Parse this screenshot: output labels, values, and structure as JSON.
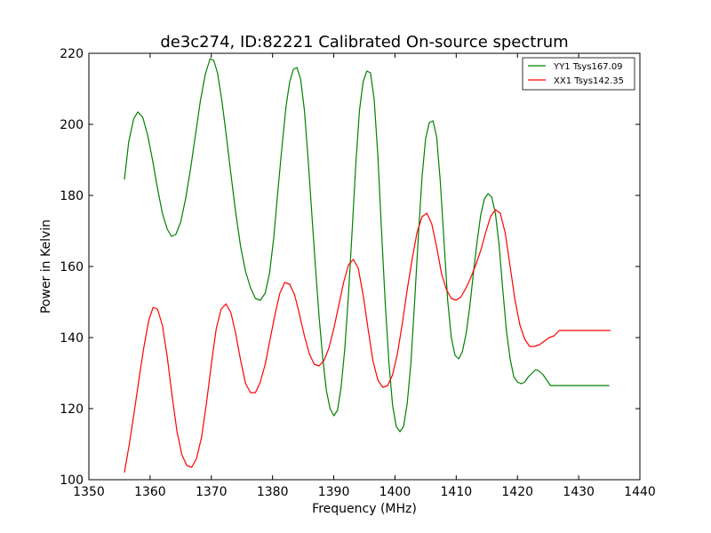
{
  "chart_data": {
    "type": "line",
    "title": "de3c274, ID:82221 Calibrated On-source spectrum",
    "xlabel": "Frequency (MHz)",
    "ylabel": "Power in Kelvin",
    "xlim": [
      1350,
      1440
    ],
    "ylim": [
      100,
      220
    ],
    "xticks": [
      1350,
      1360,
      1370,
      1380,
      1390,
      1400,
      1410,
      1420,
      1430,
      1440
    ],
    "yticks": [
      100,
      120,
      140,
      160,
      180,
      200,
      220
    ],
    "grid": false,
    "legend": "top-right",
    "series": [
      {
        "name": "YY1 Tsys167.09",
        "color": "#008000",
        "x": [
          1355.8,
          1356.5,
          1357.3,
          1358.0,
          1358.8,
          1359.6,
          1360.4,
          1361.2,
          1362.0,
          1362.8,
          1363.5,
          1364.2,
          1365.0,
          1365.8,
          1366.6,
          1367.4,
          1368.2,
          1369.0,
          1369.8,
          1370.4,
          1371.0,
          1371.7,
          1372.4,
          1373.2,
          1374.0,
          1374.8,
          1375.6,
          1376.4,
          1377.2,
          1378.0,
          1378.8,
          1379.5,
          1380.2,
          1380.8,
          1381.5,
          1382.2,
          1382.8,
          1383.4,
          1384.0,
          1384.6,
          1385.2,
          1385.8,
          1386.4,
          1387.0,
          1387.6,
          1388.2,
          1388.8,
          1389.4,
          1390.0,
          1390.6,
          1391.2,
          1391.8,
          1392.4,
          1393.0,
          1393.6,
          1394.2,
          1394.8,
          1395.4,
          1396.0,
          1396.6,
          1397.2,
          1397.8,
          1398.4,
          1399.0,
          1399.6,
          1400.2,
          1400.8,
          1401.4,
          1402.0,
          1402.6,
          1403.2,
          1403.8,
          1404.4,
          1405.0,
          1405.6,
          1406.2,
          1406.8,
          1407.4,
          1408.0,
          1408.6,
          1409.2,
          1409.8,
          1410.4,
          1411.0,
          1411.6,
          1412.2,
          1412.8,
          1413.4,
          1414.0,
          1414.6,
          1415.2,
          1415.8,
          1416.4,
          1417.0,
          1417.6,
          1418.2,
          1418.8,
          1419.4,
          1420.0,
          1420.6,
          1421.2,
          1421.8,
          1422.4,
          1423.0,
          1423.6,
          1424.2,
          1424.8,
          1425.4,
          1426.0,
          1426.6,
          1427.2,
          1427.8,
          1428.4,
          1429.0,
          1429.6,
          1430.2,
          1430.8,
          1431.4,
          1432.0,
          1432.6,
          1433.2,
          1433.8,
          1434.4,
          1435.0
        ],
        "y": [
          184.5,
          195.0,
          201.5,
          203.5,
          202.0,
          197.0,
          190.0,
          182.0,
          175.0,
          170.5,
          168.5,
          169.0,
          172.5,
          179.0,
          187.5,
          197.0,
          206.5,
          214.0,
          218.5,
          218.0,
          214.5,
          207.0,
          197.5,
          186.0,
          175.0,
          165.5,
          158.5,
          154.0,
          151.0,
          150.5,
          152.5,
          158.0,
          168.0,
          180.0,
          193.0,
          205.0,
          212.0,
          215.5,
          216.0,
          212.5,
          204.0,
          190.5,
          175.0,
          160.0,
          146.0,
          134.0,
          125.0,
          120.0,
          118.0,
          119.5,
          126.0,
          137.0,
          152.0,
          170.0,
          189.0,
          204.0,
          212.0,
          215.0,
          214.5,
          207.0,
          191.0,
          170.0,
          150.0,
          133.0,
          121.0,
          115.0,
          113.5,
          115.0,
          121.5,
          133.0,
          150.0,
          168.0,
          185.0,
          196.0,
          200.5,
          201.0,
          196.5,
          184.0,
          167.0,
          150.5,
          140.0,
          135.0,
          134.0,
          136.0,
          141.0,
          148.5,
          158.0,
          167.0,
          174.5,
          179.0,
          180.5,
          179.5,
          175.0,
          166.0,
          153.5,
          142.0,
          134.0,
          129.0,
          127.5,
          127.0,
          127.5,
          129.0,
          130.0,
          131.0,
          130.5,
          129.5,
          128.0,
          126.5,
          126.5,
          126.5,
          126.5,
          126.5,
          126.5,
          126.5,
          126.5,
          126.5,
          126.5,
          126.5,
          126.5,
          126.5,
          126.5,
          126.5,
          126.5,
          126.5
        ]
      },
      {
        "name": "XX1 Tsys142.35",
        "color": "#ff0000",
        "x": [
          1355.8,
          1356.6,
          1357.4,
          1358.2,
          1359.0,
          1359.8,
          1360.5,
          1361.2,
          1362.0,
          1362.8,
          1363.6,
          1364.4,
          1365.2,
          1366.0,
          1366.8,
          1367.6,
          1368.4,
          1369.2,
          1370.0,
          1370.8,
          1371.6,
          1372.4,
          1373.2,
          1374.0,
          1374.8,
          1375.6,
          1376.4,
          1377.2,
          1378.0,
          1378.8,
          1379.6,
          1380.4,
          1381.2,
          1382.0,
          1382.8,
          1383.6,
          1384.4,
          1385.2,
          1386.0,
          1386.8,
          1387.6,
          1388.4,
          1389.2,
          1390.0,
          1390.8,
          1391.6,
          1392.4,
          1393.2,
          1394.0,
          1394.8,
          1395.6,
          1396.4,
          1397.2,
          1398.0,
          1398.8,
          1399.6,
          1400.4,
          1401.2,
          1402.0,
          1402.8,
          1403.6,
          1404.4,
          1405.2,
          1406.0,
          1406.8,
          1407.6,
          1408.4,
          1409.2,
          1410.0,
          1410.8,
          1411.6,
          1412.4,
          1413.2,
          1414.0,
          1414.8,
          1415.6,
          1416.4,
          1417.2,
          1418.0,
          1418.8,
          1419.6,
          1420.4,
          1421.2,
          1422.0,
          1422.8,
          1423.6,
          1424.4,
          1425.2,
          1426.0,
          1426.8,
          1427.6,
          1428.4,
          1429.2,
          1430.0,
          1430.8,
          1431.6,
          1432.4,
          1433.2,
          1434.0,
          1434.8,
          1435.2
        ],
        "y": [
          102.0,
          110.0,
          119.0,
          128.5,
          137.5,
          145.0,
          148.5,
          148.0,
          143.5,
          134.5,
          123.5,
          113.5,
          107.0,
          104.0,
          103.5,
          106.0,
          112.0,
          121.5,
          132.5,
          142.5,
          148.0,
          149.5,
          147.0,
          141.0,
          133.5,
          127.0,
          124.5,
          124.5,
          127.5,
          132.5,
          139.5,
          146.5,
          152.5,
          155.5,
          155.0,
          152.0,
          146.5,
          140.5,
          135.5,
          132.5,
          132.0,
          133.5,
          137.0,
          142.5,
          149.0,
          155.5,
          160.5,
          162.0,
          159.5,
          152.0,
          142.5,
          133.5,
          128.0,
          126.0,
          126.5,
          129.5,
          135.5,
          144.0,
          153.5,
          162.0,
          169.5,
          174.0,
          175.0,
          172.0,
          165.5,
          158.0,
          153.5,
          151.0,
          150.5,
          151.5,
          154.0,
          157.0,
          160.5,
          164.5,
          169.5,
          174.0,
          176.0,
          175.0,
          169.5,
          160.0,
          150.5,
          143.5,
          139.5,
          137.5,
          137.5,
          138.0,
          139.0,
          140.0,
          140.5,
          142.0,
          142.0,
          142.0,
          142.0,
          142.0,
          142.0,
          142.0,
          142.0,
          142.0,
          142.0,
          142.0,
          142.0
        ]
      }
    ]
  }
}
